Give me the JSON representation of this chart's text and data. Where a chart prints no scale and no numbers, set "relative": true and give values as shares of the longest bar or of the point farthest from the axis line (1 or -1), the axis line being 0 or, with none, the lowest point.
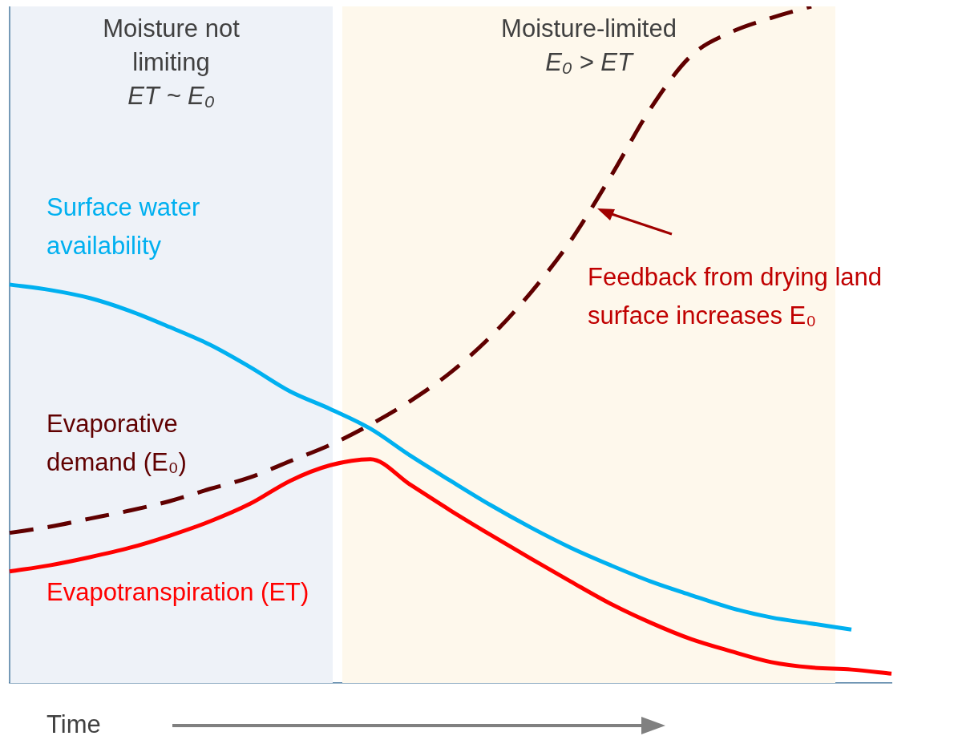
{
  "chart_data": {
    "type": "line",
    "relative": true,
    "xlabel": "Time",
    "categories": [
      null,
      null,
      null,
      null,
      null,
      null,
      null,
      null,
      null,
      null,
      null,
      null,
      null,
      null,
      null,
      null,
      null,
      null,
      null,
      null,
      null,
      null,
      null
    ],
    "series": [
      {
        "name": "Surface water availability",
        "color": "#00b0f0",
        "values": [
          0.589,
          0.581,
          0.569,
          0.55,
          0.526,
          0.5,
          0.467,
          0.431,
          0.405,
          0.376,
          0.336,
          0.299,
          0.263,
          0.23,
          0.2,
          0.174,
          0.15,
          0.13,
          0.111,
          0.097,
          0.088,
          0.079,
          null
        ]
      },
      {
        "name": "Evaporative demand (E₀)",
        "color": "#600000",
        "line_style": "dashed",
        "values": [
          0.222,
          0.231,
          0.243,
          0.255,
          0.269,
          0.287,
          0.304,
          0.328,
          0.352,
          0.382,
          0.417,
          0.459,
          0.512,
          0.577,
          0.654,
          0.749,
          0.85,
          0.927,
          0.962,
          0.983,
          1,
          null,
          null
        ]
      },
      {
        "name": "Evapotranspiration (ET)",
        "color": "#ff0000",
        "values": [
          0.165,
          0.174,
          0.186,
          0.2,
          0.218,
          0.239,
          0.265,
          0.299,
          0.322,
          0.331,
          0.293,
          0.255,
          0.219,
          0.184,
          0.15,
          0.117,
          0.089,
          0.065,
          0.047,
          0.031,
          0.023,
          0.02,
          0.014
        ]
      }
    ],
    "annotations": [
      "Moisture not\nlimiting\nET ~ E₀",
      "Moisture-limited\nE₀ > ET",
      "Feedback from drying land surface increases E₀"
    ],
    "legend": false,
    "grid": false,
    "marker": "none"
  }
}
